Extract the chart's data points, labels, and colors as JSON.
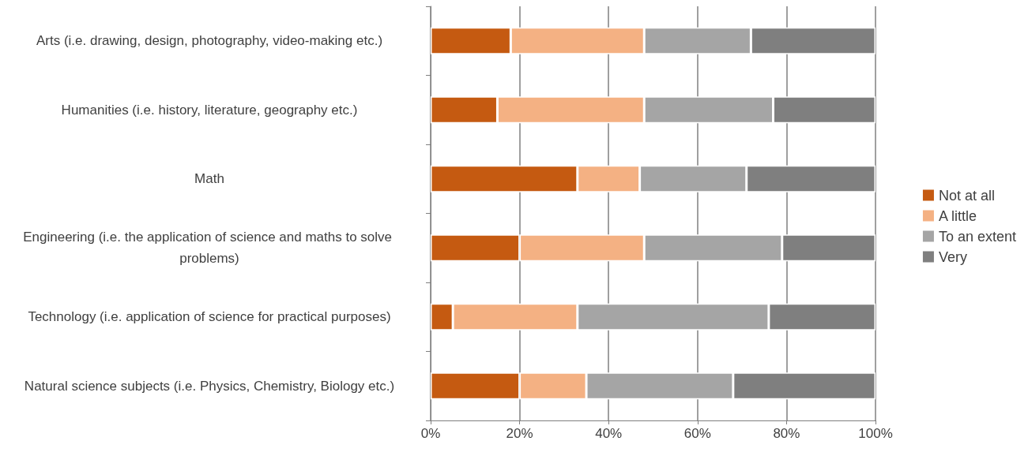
{
  "chart_data": {
    "type": "bar",
    "orientation": "horizontal",
    "stacked": true,
    "categories": [
      "Arts (i.e. drawing, design, photography, video-making etc.)",
      "Humanities (i.e. history, literature, geography etc.)",
      "Math",
      "Engineering (i.e. the application of science and maths to solve problems)",
      "Technology (i.e. application of science for practical purposes)",
      "Natural science subjects (i.e. Physics, Chemistry, Biology etc.)"
    ],
    "series": [
      {
        "name": "Not at all",
        "color": "#c55a11",
        "values": [
          18,
          15,
          33,
          20,
          5,
          20
        ]
      },
      {
        "name": "A little",
        "color": "#f4b183",
        "values": [
          30,
          33,
          14,
          28,
          28,
          15
        ]
      },
      {
        "name": "To an extent",
        "color": "#a5a5a5",
        "values": [
          24,
          29,
          24,
          31,
          43,
          33
        ]
      },
      {
        "name": "Very",
        "color": "#7f7f7f",
        "values": [
          28,
          23,
          29,
          21,
          24,
          32
        ]
      }
    ],
    "xlim": [
      0,
      100
    ],
    "xticks": [
      {
        "value": 0,
        "label": "0%"
      },
      {
        "value": 20,
        "label": "20%"
      },
      {
        "value": 40,
        "label": "40%"
      },
      {
        "value": 60,
        "label": "60%"
      },
      {
        "value": 80,
        "label": "80%"
      },
      {
        "value": 100,
        "label": "100%"
      }
    ],
    "grid": "x",
    "legend": "right"
  }
}
